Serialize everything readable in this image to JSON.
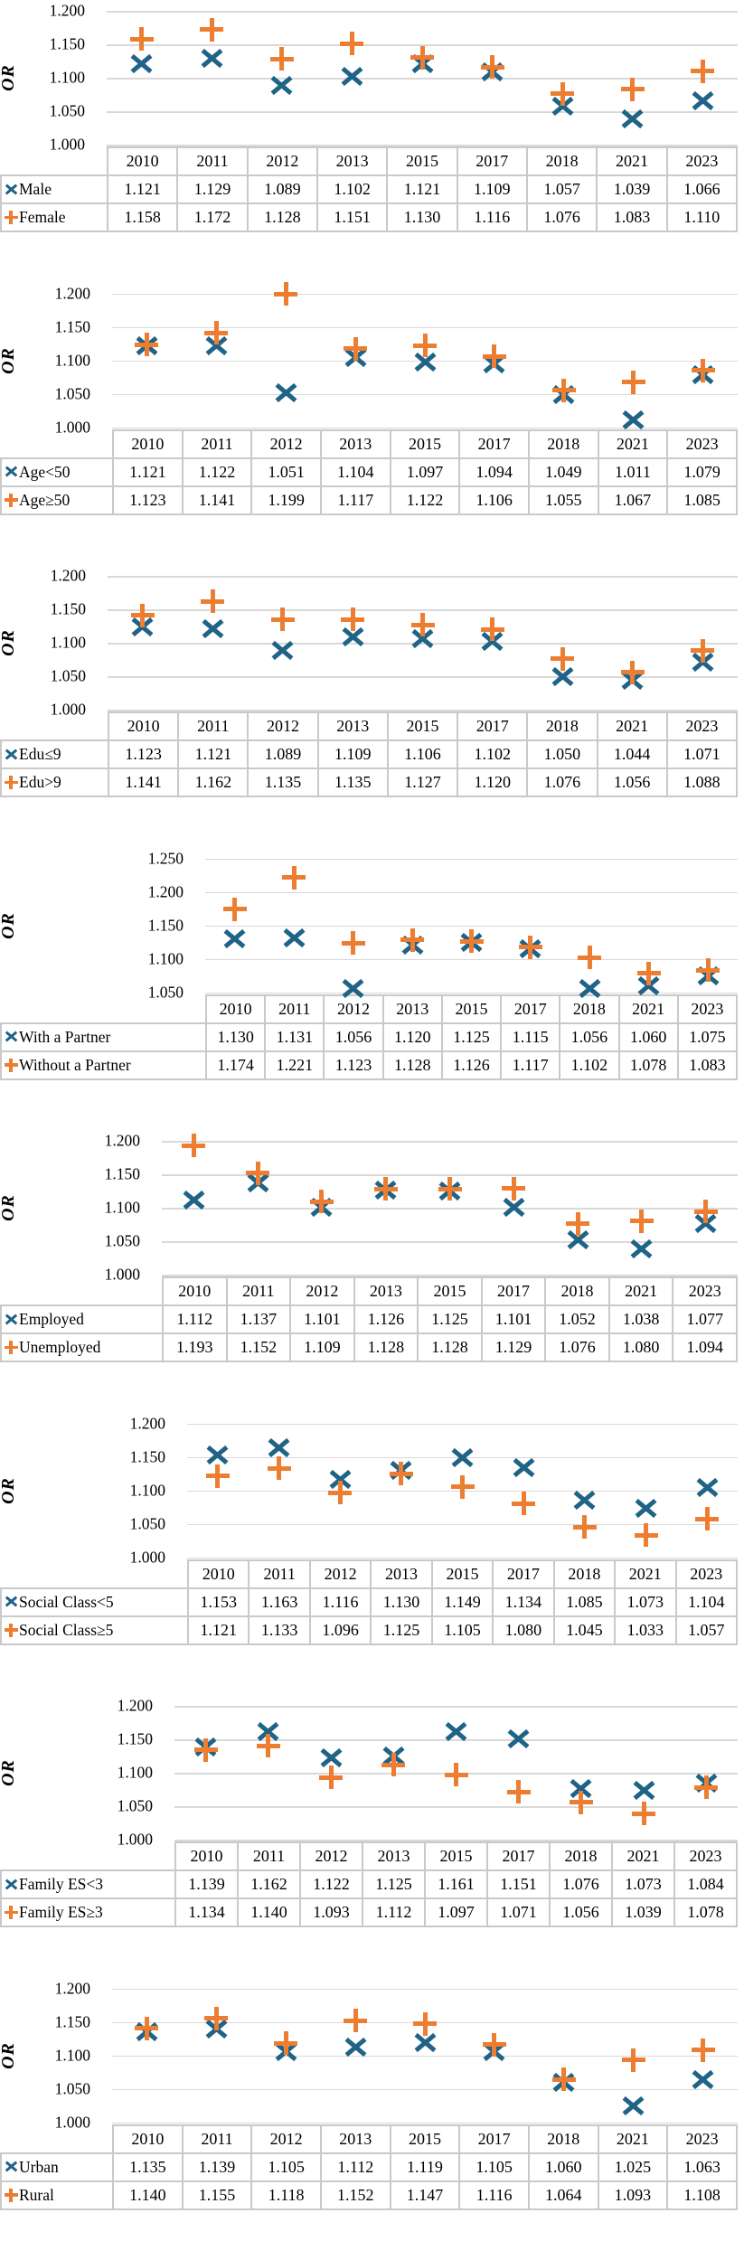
{
  "colors": {
    "series_x_marker": "#1F6387",
    "series_plus_marker": "#ED7D31",
    "gridline": "#D9D9D9",
    "table_border": "#C9C9C9"
  },
  "chart_data": [
    {
      "type": "scatter",
      "x": [
        "2010",
        "2011",
        "2012",
        "2013",
        "2015",
        "2017",
        "2018",
        "2021",
        "2023"
      ],
      "ylabel": "OR",
      "ylim": [
        1.0,
        1.2
      ],
      "yticks": [
        1.2,
        1.15,
        1.1,
        1.05,
        1.0
      ],
      "grid": true,
      "legend_position": "table-below",
      "series": [
        {
          "name": "Male",
          "marker": "x",
          "color": "#1F6387",
          "values": [
            1.121,
            1.129,
            1.089,
            1.102,
            1.121,
            1.109,
            1.057,
            1.039,
            1.066
          ]
        },
        {
          "name": "Female",
          "marker": "+",
          "color": "#ED7D31",
          "values": [
            1.158,
            1.172,
            1.128,
            1.151,
            1.13,
            1.116,
            1.076,
            1.083,
            1.11
          ]
        }
      ]
    },
    {
      "type": "scatter",
      "x": [
        "2010",
        "2011",
        "2012",
        "2013",
        "2015",
        "2017",
        "2018",
        "2021",
        "2023"
      ],
      "ylabel": "OR",
      "ylim": [
        1.0,
        1.2
      ],
      "yticks": [
        1.2,
        1.15,
        1.1,
        1.05,
        1.0
      ],
      "grid": true,
      "legend_position": "table-below",
      "series": [
        {
          "name": "Age<50",
          "marker": "x",
          "color": "#1F6387",
          "values": [
            1.121,
            1.122,
            1.051,
            1.104,
            1.097,
            1.094,
            1.049,
            1.011,
            1.079
          ]
        },
        {
          "name": "Age≥50",
          "marker": "+",
          "color": "#ED7D31",
          "values": [
            1.123,
            1.141,
            1.199,
            1.117,
            1.122,
            1.106,
            1.055,
            1.067,
            1.085
          ]
        }
      ]
    },
    {
      "type": "scatter",
      "x": [
        "2010",
        "2011",
        "2012",
        "2013",
        "2015",
        "2017",
        "2018",
        "2021",
        "2023"
      ],
      "ylabel": "OR",
      "ylim": [
        1.0,
        1.2
      ],
      "yticks": [
        1.2,
        1.15,
        1.1,
        1.05,
        1.0
      ],
      "grid": true,
      "legend_position": "table-below",
      "series": [
        {
          "name": "Edu≤9",
          "marker": "x",
          "color": "#1F6387",
          "values": [
            1.123,
            1.121,
            1.089,
            1.109,
            1.106,
            1.102,
            1.05,
            1.044,
            1.071
          ]
        },
        {
          "name": "Edu>9",
          "marker": "+",
          "color": "#ED7D31",
          "values": [
            1.141,
            1.162,
            1.135,
            1.135,
            1.127,
            1.12,
            1.076,
            1.056,
            1.088
          ]
        }
      ]
    },
    {
      "type": "scatter",
      "x": [
        "2010",
        "2011",
        "2012",
        "2013",
        "2015",
        "2017",
        "2018",
        "2021",
        "2023"
      ],
      "ylabel": "OR",
      "ylim": [
        1.05,
        1.25
      ],
      "yticks": [
        1.25,
        1.2,
        1.15,
        1.1,
        1.05
      ],
      "grid": true,
      "legend_position": "table-below",
      "series": [
        {
          "name": "With a Partner",
          "marker": "x",
          "color": "#1F6387",
          "values": [
            1.13,
            1.131,
            1.056,
            1.12,
            1.125,
            1.115,
            1.056,
            1.06,
            1.075
          ]
        },
        {
          "name": "Without a Partner",
          "marker": "+",
          "color": "#ED7D31",
          "values": [
            1.174,
            1.221,
            1.123,
            1.128,
            1.126,
            1.117,
            1.102,
            1.078,
            1.083
          ]
        }
      ]
    },
    {
      "type": "scatter",
      "x": [
        "2010",
        "2011",
        "2012",
        "2013",
        "2015",
        "2017",
        "2018",
        "2021",
        "2023"
      ],
      "ylabel": "OR",
      "ylim": [
        1.0,
        1.2
      ],
      "yticks": [
        1.2,
        1.15,
        1.1,
        1.05,
        1.0
      ],
      "grid": true,
      "legend_position": "table-below",
      "series": [
        {
          "name": "Employed",
          "marker": "x",
          "color": "#1F6387",
          "values": [
            1.112,
            1.137,
            1.101,
            1.126,
            1.125,
            1.101,
            1.052,
            1.038,
            1.077
          ]
        },
        {
          "name": "Unemployed",
          "marker": "+",
          "color": "#ED7D31",
          "values": [
            1.193,
            1.152,
            1.109,
            1.128,
            1.128,
            1.129,
            1.076,
            1.08,
            1.094
          ]
        }
      ]
    },
    {
      "type": "scatter",
      "x": [
        "2010",
        "2011",
        "2012",
        "2013",
        "2015",
        "2017",
        "2018",
        "2021",
        "2023"
      ],
      "ylabel": "OR",
      "ylim": [
        1.0,
        1.2
      ],
      "yticks": [
        1.2,
        1.15,
        1.1,
        1.05,
        1.0
      ],
      "grid": true,
      "legend_position": "table-below",
      "series": [
        {
          "name": "Social Class<5",
          "marker": "x",
          "color": "#1F6387",
          "values": [
            1.153,
            1.163,
            1.116,
            1.13,
            1.149,
            1.134,
            1.085,
            1.073,
            1.104
          ]
        },
        {
          "name": "Social Class≥5",
          "marker": "+",
          "color": "#ED7D31",
          "values": [
            1.121,
            1.133,
            1.096,
            1.125,
            1.105,
            1.08,
            1.045,
            1.033,
            1.057
          ]
        }
      ]
    },
    {
      "type": "scatter",
      "x": [
        "2010",
        "2011",
        "2012",
        "2013",
        "2015",
        "2017",
        "2018",
        "2021",
        "2023"
      ],
      "ylabel": "OR",
      "ylim": [
        1.0,
        1.2
      ],
      "yticks": [
        1.2,
        1.15,
        1.1,
        1.05,
        1.0
      ],
      "grid": true,
      "legend_position": "table-below",
      "series": [
        {
          "name": "Family ES<3",
          "marker": "x",
          "color": "#1F6387",
          "values": [
            1.139,
            1.162,
            1.122,
            1.125,
            1.161,
            1.151,
            1.076,
            1.073,
            1.084
          ]
        },
        {
          "name": "Family ES≥3",
          "marker": "+",
          "color": "#ED7D31",
          "values": [
            1.134,
            1.14,
            1.093,
            1.112,
            1.097,
            1.071,
            1.056,
            1.039,
            1.078
          ]
        }
      ]
    },
    {
      "type": "scatter",
      "x": [
        "2010",
        "2011",
        "2012",
        "2013",
        "2015",
        "2017",
        "2018",
        "2021",
        "2023"
      ],
      "ylabel": "OR",
      "ylim": [
        1.0,
        1.2
      ],
      "yticks": [
        1.2,
        1.15,
        1.1,
        1.05,
        1.0
      ],
      "grid": true,
      "legend_position": "table-below",
      "series": [
        {
          "name": "Urban",
          "marker": "x",
          "color": "#1F6387",
          "values": [
            1.135,
            1.139,
            1.105,
            1.112,
            1.119,
            1.105,
            1.06,
            1.025,
            1.063
          ]
        },
        {
          "name": "Rural",
          "marker": "+",
          "color": "#ED7D31",
          "values": [
            1.14,
            1.155,
            1.118,
            1.152,
            1.147,
            1.116,
            1.064,
            1.093,
            1.108
          ]
        }
      ]
    }
  ]
}
